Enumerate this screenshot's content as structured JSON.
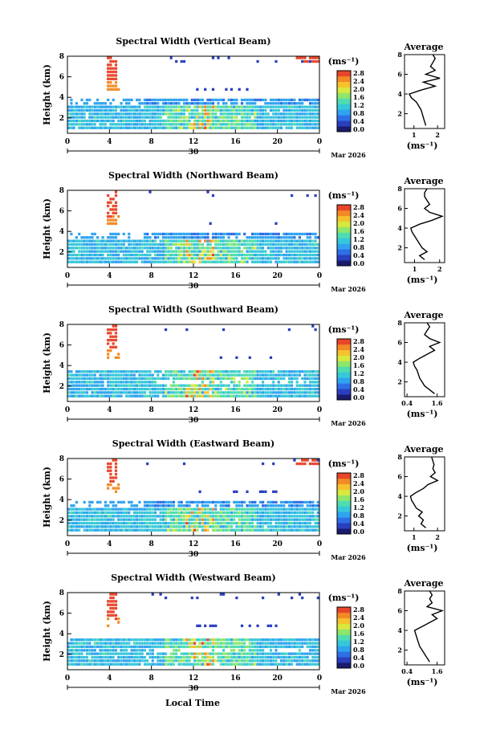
{
  "chart_data": [
    {
      "type": "heatmap",
      "title": "Spectral Width (Vertical Beam)",
      "ylabel": "Height (km)",
      "yticks": [
        "2",
        "4",
        "6",
        "8"
      ],
      "xticks": [
        "0",
        "4",
        "8",
        "12",
        "16",
        "20",
        "0"
      ],
      "xlim": [
        0,
        24
      ],
      "ylim": [
        0.5,
        8
      ],
      "date_day": "30",
      "date_label": "Mar 2026",
      "colorbar_unit": "(ms⁻¹)",
      "colorbar_ticks": [
        "0.0",
        "0.4",
        "0.8",
        "1.2",
        "1.6",
        "2.0",
        "2.4",
        "2.8"
      ],
      "colorbar_range": [
        0,
        2.8
      ],
      "avg_title": "Average",
      "avg_xlabel": "(ms⁻¹)",
      "avg_xticks": [
        "1",
        "2"
      ],
      "avg_xlim": [
        0.6,
        2.3
      ],
      "avg_yticks": [
        "2",
        "4",
        "6",
        "8"
      ],
      "avg_ylim": [
        0.5,
        8
      ],
      "avg_profile": {
        "height": [
          0.8,
          1.2,
          1.6,
          2.0,
          2.4,
          2.8,
          3.2,
          3.6,
          4.0,
          4.4,
          4.8,
          5.2,
          5.6,
          6.0,
          6.4,
          6.8,
          7.2,
          7.6,
          8.0
        ],
        "width": [
          1.5,
          1.45,
          1.4,
          1.35,
          1.3,
          1.2,
          1.1,
          0.9,
          0.8,
          1.3,
          1.9,
          1.4,
          2.1,
          1.5,
          1.9,
          1.7,
          1.8,
          1.9,
          1.8
        ]
      }
    },
    {
      "type": "heatmap",
      "title": "Spectral Width (Northward Beam)",
      "ylabel": "Height (km)",
      "yticks": [
        "2",
        "4",
        "6",
        "8"
      ],
      "xticks": [
        "0",
        "4",
        "8",
        "12",
        "16",
        "20",
        "0"
      ],
      "xlim": [
        0,
        24
      ],
      "ylim": [
        0.5,
        8
      ],
      "date_day": "30",
      "date_label": "Mar 2026",
      "colorbar_unit": "(ms⁻¹)",
      "colorbar_ticks": [
        "0.0",
        "0.4",
        "0.8",
        "1.2",
        "1.6",
        "2.0",
        "2.4",
        "2.8"
      ],
      "colorbar_range": [
        0,
        2.8
      ],
      "avg_title": "Average",
      "avg_xlabel": "(ms⁻¹)",
      "avg_xticks": [
        "1",
        "2"
      ],
      "avg_xlim": [
        0.6,
        2.2
      ],
      "avg_yticks": [
        "2",
        "4",
        "6",
        "8"
      ],
      "avg_ylim": [
        0.5,
        8
      ],
      "avg_profile": {
        "height": [
          0.8,
          1.2,
          1.6,
          2.0,
          2.4,
          2.8,
          3.2,
          3.6,
          4.0,
          4.4,
          4.8,
          5.2,
          5.6,
          6.0,
          6.4,
          6.8,
          7.2,
          7.6,
          8.0
        ],
        "width": [
          1.4,
          1.2,
          1.5,
          1.3,
          1.2,
          1.1,
          1.0,
          0.9,
          0.85,
          1.2,
          1.7,
          2.1,
          1.6,
          1.4,
          1.6,
          1.5,
          1.4,
          1.4,
          1.5
        ]
      }
    },
    {
      "type": "heatmap",
      "title": "Spectral Width (Southward Beam)",
      "ylabel": "Height (km)",
      "yticks": [
        "2",
        "4",
        "6",
        "8"
      ],
      "xticks": [
        "0",
        "4",
        "8",
        "12",
        "16",
        "20",
        "0"
      ],
      "xlim": [
        0,
        24
      ],
      "ylim": [
        0.5,
        8
      ],
      "date_day": "30",
      "date_label": "Mar 2026",
      "colorbar_unit": "(ms⁻¹)",
      "colorbar_ticks": [
        "0.0",
        "0.4",
        "0.8",
        "1.2",
        "1.6",
        "2.0",
        "2.4",
        "2.8"
      ],
      "colorbar_range": [
        0,
        2.8
      ],
      "avg_title": "Average",
      "avg_xlabel": "(ms⁻¹)",
      "avg_xticks": [
        "0.4",
        "1.6"
      ],
      "avg_xlim": [
        0.3,
        1.9
      ],
      "avg_yticks": [
        "2",
        "4",
        "6",
        "8"
      ],
      "avg_ylim": [
        0.5,
        8
      ],
      "avg_profile": {
        "height": [
          0.8,
          1.2,
          1.6,
          2.0,
          2.4,
          2.8,
          3.2,
          3.6,
          4.0,
          4.4,
          4.8,
          5.2,
          5.6,
          6.0,
          6.4,
          6.8,
          7.2,
          7.6,
          8.0
        ],
        "width": [
          1.5,
          1.3,
          1.1,
          1.0,
          0.9,
          0.85,
          0.8,
          0.7,
          0.65,
          0.9,
          1.2,
          1.5,
          1.3,
          1.7,
          1.3,
          1.1,
          1.2,
          1.3,
          1.2
        ]
      }
    },
    {
      "type": "heatmap",
      "title": "Spectral Width (Eastward Beam)",
      "ylabel": "Height (km)",
      "yticks": [
        "2",
        "4",
        "6",
        "8"
      ],
      "xticks": [
        "0",
        "4",
        "8",
        "12",
        "16",
        "20",
        "0"
      ],
      "xlim": [
        0,
        24
      ],
      "ylim": [
        0.5,
        8
      ],
      "date_day": "30",
      "date_label": "Mar 2026",
      "colorbar_unit": "(ms⁻¹)",
      "colorbar_ticks": [
        "0.0",
        "0.4",
        "0.8",
        "1.2",
        "1.6",
        "2.0",
        "2.4",
        "2.8"
      ],
      "colorbar_range": [
        0,
        2.8
      ],
      "avg_title": "Average",
      "avg_xlabel": "(ms⁻¹)",
      "avg_xticks": [
        "1",
        "2"
      ],
      "avg_xlim": [
        0.6,
        2.3
      ],
      "avg_yticks": [
        "2",
        "4",
        "6",
        "8"
      ],
      "avg_ylim": [
        0.5,
        8
      ],
      "avg_profile": {
        "height": [
          0.8,
          1.2,
          1.6,
          2.0,
          2.4,
          2.8,
          3.2,
          3.6,
          4.0,
          4.4,
          4.8,
          5.2,
          5.6,
          6.0,
          6.4,
          6.8,
          7.2,
          7.6,
          8.0
        ],
        "width": [
          1.5,
          1.3,
          1.4,
          1.2,
          1.35,
          1.1,
          1.0,
          0.9,
          0.85,
          1.1,
          1.4,
          1.6,
          2.0,
          1.7,
          1.9,
          1.8,
          1.85,
          1.8,
          1.75
        ]
      }
    },
    {
      "type": "heatmap",
      "title": "Spectral Width (Westward Beam)",
      "ylabel": "Height (km)",
      "yticks": [
        "2",
        "4",
        "6",
        "8"
      ],
      "xticks": [
        "0",
        "4",
        "8",
        "12",
        "16",
        "20",
        "0"
      ],
      "xlim": [
        0,
        24
      ],
      "ylim": [
        0.5,
        8
      ],
      "date_day": "30",
      "date_label": "Mar 2026",
      "colorbar_unit": "(ms⁻¹)",
      "colorbar_ticks": [
        "0.0",
        "0.4",
        "0.8",
        "1.2",
        "1.6",
        "2.0",
        "2.4",
        "2.8"
      ],
      "colorbar_range": [
        0,
        2.8
      ],
      "avg_title": "Average",
      "avg_xlabel": "(ms⁻¹)",
      "avg_xticks": [
        "0.4",
        "1.6"
      ],
      "avg_xlim": [
        0.3,
        1.9
      ],
      "avg_yticks": [
        "2",
        "4",
        "6",
        "8"
      ],
      "avg_ylim": [
        0.5,
        8
      ],
      "avg_profile": {
        "height": [
          0.8,
          1.2,
          1.6,
          2.0,
          2.4,
          2.8,
          3.2,
          3.6,
          4.0,
          4.4,
          4.8,
          5.2,
          5.6,
          6.0,
          6.4,
          6.8,
          7.2,
          7.6,
          8.0
        ],
        "width": [
          1.3,
          1.2,
          1.1,
          1.0,
          0.9,
          0.85,
          0.8,
          0.75,
          0.7,
          1.0,
          1.3,
          1.6,
          1.4,
          1.8,
          1.2,
          1.4,
          1.3,
          1.4,
          1.3
        ]
      }
    }
  ],
  "xlabel": "Local Time",
  "colormap": [
    "#1a1a6e",
    "#2a3fbf",
    "#2e6fe6",
    "#2fa3ef",
    "#36c7d9",
    "#4fdcb0",
    "#8ee66a",
    "#d9e83e",
    "#f5c22e",
    "#f28a26",
    "#e8452a"
  ]
}
